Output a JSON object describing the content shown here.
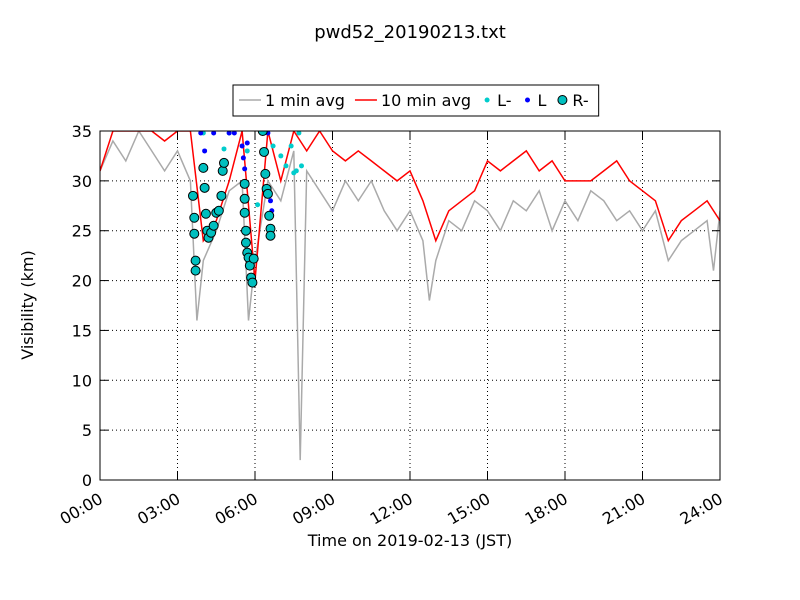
{
  "chart_data": {
    "type": "line",
    "title": "pwd52_20190213.txt",
    "xlabel": "Time on 2019-02-13 (JST)",
    "ylabel": "Visibility (km)",
    "xlim": [
      0,
      24
    ],
    "ylim": [
      0,
      35
    ],
    "xticks": [
      {
        "value": 0,
        "label": "00:00"
      },
      {
        "value": 3,
        "label": "03:00"
      },
      {
        "value": 6,
        "label": "06:00"
      },
      {
        "value": 9,
        "label": "09:00"
      },
      {
        "value": 12,
        "label": "12:00"
      },
      {
        "value": 15,
        "label": "15:00"
      },
      {
        "value": 18,
        "label": "18:00"
      },
      {
        "value": 21,
        "label": "21:00"
      },
      {
        "value": 24,
        "label": "24:00"
      }
    ],
    "yticks": [
      0,
      5,
      10,
      15,
      20,
      25,
      30,
      35
    ],
    "grid": true,
    "legend": "top",
    "series": [
      {
        "name": "1 min avg",
        "color": "#aaaaaa",
        "style": "line",
        "x": [
          0,
          0.5,
          1,
          1.5,
          2,
          2.5,
          3,
          3.5,
          3.75,
          4,
          4.5,
          5,
          5.5,
          5.75,
          6,
          6.5,
          7,
          7.5,
          7.75,
          8,
          8.5,
          9,
          9.5,
          10,
          10.5,
          11,
          11.5,
          12,
          12.5,
          12.75,
          13,
          13.5,
          14,
          14.5,
          15,
          15.5,
          16,
          16.5,
          17,
          17.5,
          18,
          18.5,
          19,
          19.5,
          20,
          20.5,
          21,
          21.5,
          22,
          22.5,
          23,
          23.5,
          23.75,
          24
        ],
        "values": [
          31,
          34,
          32,
          35,
          33,
          31,
          33,
          30,
          16,
          22,
          25,
          29,
          30,
          16,
          22,
          30,
          28,
          33,
          2,
          31,
          29,
          27,
          30,
          28,
          30,
          27,
          25,
          27,
          24,
          18,
          22,
          26,
          25,
          28,
          27,
          25,
          28,
          27,
          29,
          25,
          28,
          26,
          29,
          28,
          26,
          27,
          25,
          27,
          22,
          24,
          25,
          26,
          21,
          27
        ]
      },
      {
        "name": "10 min avg",
        "color": "#ff0000",
        "style": "line",
        "x": [
          0,
          0.5,
          1,
          1.5,
          2,
          2.5,
          3,
          3.5,
          4,
          4.5,
          5,
          5.5,
          6,
          6.5,
          7,
          7.5,
          8,
          8.5,
          9,
          9.5,
          10,
          10.5,
          11,
          11.5,
          12,
          12.5,
          13,
          13.5,
          14,
          14.5,
          15,
          15.5,
          16,
          16.5,
          17,
          17.5,
          18,
          18.5,
          19,
          19.5,
          20,
          20.5,
          21,
          21.5,
          22,
          22.5,
          23,
          23.5,
          24
        ],
        "values": [
          31,
          35,
          35,
          35,
          35,
          34,
          35,
          35,
          24,
          26,
          30,
          35,
          20,
          35,
          30,
          35,
          33,
          35,
          33,
          32,
          33,
          32,
          31,
          30,
          31,
          28,
          24,
          27,
          28,
          29,
          32,
          31,
          32,
          33,
          31,
          32,
          30,
          30,
          30,
          31,
          32,
          30,
          29,
          28,
          24,
          26,
          27,
          28,
          26
        ]
      },
      {
        "name": "L-",
        "color": "#00cccc",
        "style": "marker",
        "size": 2.5,
        "x": [
          4.0,
          4.8,
          5.0,
          5.7,
          6.1,
          6.7,
          7.0,
          7.2,
          7.4,
          7.5,
          7.6,
          7.7,
          7.8
        ],
        "values": [
          34.8,
          33.2,
          34.8,
          33.0,
          27.6,
          33.5,
          32.5,
          31.5,
          33.5,
          30.8,
          31.0,
          34.8,
          31.5
        ]
      },
      {
        "name": "L",
        "color": "#0000ff",
        "style": "marker",
        "size": 2.5,
        "x": [
          3.9,
          4.05,
          4.4,
          5.0,
          5.2,
          5.5,
          5.55,
          5.6,
          5.7,
          6.5,
          6.6,
          6.65
        ],
        "values": [
          34.8,
          33.0,
          34.8,
          34.8,
          34.8,
          33.5,
          32.3,
          31.2,
          33.8,
          34.8,
          28.0,
          27.0
        ]
      },
      {
        "name": "R-",
        "color": "#00bfbf",
        "edgecolor": "#000000",
        "style": "marker",
        "size": 4.5,
        "x": [
          3.6,
          3.65,
          3.65,
          3.7,
          3.7,
          4.0,
          4.05,
          4.1,
          4.15,
          4.2,
          4.3,
          4.4,
          4.5,
          4.6,
          4.7,
          4.75,
          4.8,
          5.6,
          5.6,
          5.6,
          5.65,
          5.65,
          5.7,
          5.75,
          5.8,
          5.85,
          5.9,
          5.95,
          6.3,
          6.35,
          6.4,
          6.45,
          6.5,
          6.55,
          6.6,
          6.6
        ],
        "values": [
          28.5,
          26.3,
          24.7,
          22,
          21,
          31.3,
          29.3,
          26.7,
          25,
          24.3,
          24.8,
          25.5,
          26.8,
          27.0,
          28.5,
          31.0,
          31.8,
          29.7,
          28.2,
          26.8,
          25.0,
          23.8,
          22.8,
          22.3,
          21.5,
          20.3,
          19.8,
          22.2,
          35,
          32.9,
          30.7,
          29.2,
          28.7,
          26.5,
          25.2,
          24.5
        ]
      }
    ]
  }
}
